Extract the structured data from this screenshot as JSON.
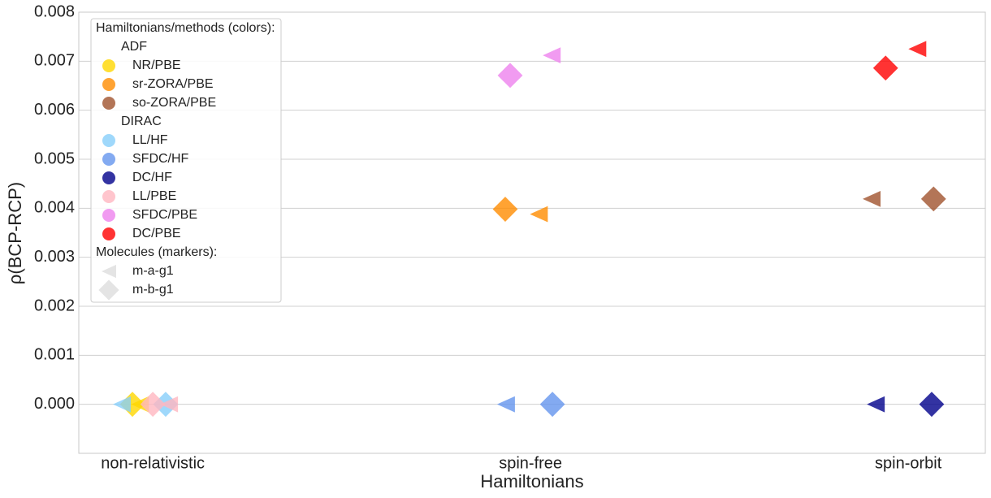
{
  "chart_data": {
    "type": "scatter",
    "xlabel": "Hamiltonians",
    "ylabel": "ρ(BCP-RCP)",
    "xlim": [
      -0.196,
      2.204
    ],
    "ylim": [
      -0.001,
      0.008
    ],
    "xticks": [
      {
        "value": 0,
        "label": "non-relativistic"
      },
      {
        "value": 1,
        "label": "spin-free"
      },
      {
        "value": 2,
        "label": "spin-orbit"
      }
    ],
    "yticks": [
      {
        "value": 0,
        "label": "0.000"
      },
      {
        "value": 0.001,
        "label": "0.001"
      },
      {
        "value": 0.002,
        "label": "0.002"
      },
      {
        "value": 0.003,
        "label": "0.003"
      },
      {
        "value": 0.004,
        "label": "0.004"
      },
      {
        "value": 0.005,
        "label": "0.005"
      },
      {
        "value": 0.006,
        "label": "0.006"
      },
      {
        "value": 0.007,
        "label": "0.007"
      },
      {
        "value": 0.008,
        "label": "0.008"
      }
    ],
    "grid": true,
    "legend": "upper left",
    "legend_title": "Hamiltonians/methods (colors):",
    "molecules_title": "Molecules (markers):",
    "molecules": [
      {
        "name": "m-a-g1",
        "marker": "triangle-left"
      },
      {
        "name": "m-b-g1",
        "marker": "diamond"
      }
    ],
    "groups": [
      {
        "name": "ADF",
        "series": [
          {
            "name": "NR/PBE",
            "color": "#ffd700",
            "x": [
              -0.034,
              -0.054
            ],
            "values": [
              0,
              0
            ]
          },
          {
            "name": "sr-ZORA/PBE",
            "color": "#ff8c00",
            "x": [
              1.022,
              0.933
            ],
            "values": [
              0.00388,
              0.00398
            ]
          },
          {
            "name": "so-ZORA/PBE",
            "color": "#a0522d",
            "x": [
              1.903,
              2.067
            ],
            "values": [
              0.00419,
              0.00419
            ]
          }
        ]
      },
      {
        "name": "DIRAC",
        "series": [
          {
            "name": "LL/HF",
            "color": "#87cefa",
            "x": [
              -0.082,
              0.034
            ],
            "values": [
              0,
              0
            ]
          },
          {
            "name": "SFDC/HF",
            "color": "#6495ed",
            "x": [
              0.935,
              1.058
            ],
            "values": [
              0,
              0
            ]
          },
          {
            "name": "DC/HF",
            "color": "#00008b",
            "x": [
              1.914,
              2.062
            ],
            "values": [
              0,
              0
            ]
          },
          {
            "name": "LL/PBE",
            "color": "#ffb6c1",
            "x": [
              0.043,
              0.0
            ],
            "values": [
              0,
              0
            ]
          },
          {
            "name": "SFDC/PBE",
            "color": "#ee82ee",
            "x": [
              1.056,
              0.946
            ],
            "values": [
              0.00712,
              0.00671
            ]
          },
          {
            "name": "DC/PBE",
            "color": "#ff0000",
            "x": [
              2.024,
              1.94
            ],
            "values": [
              0.00725,
              0.00686
            ]
          }
        ]
      }
    ]
  }
}
